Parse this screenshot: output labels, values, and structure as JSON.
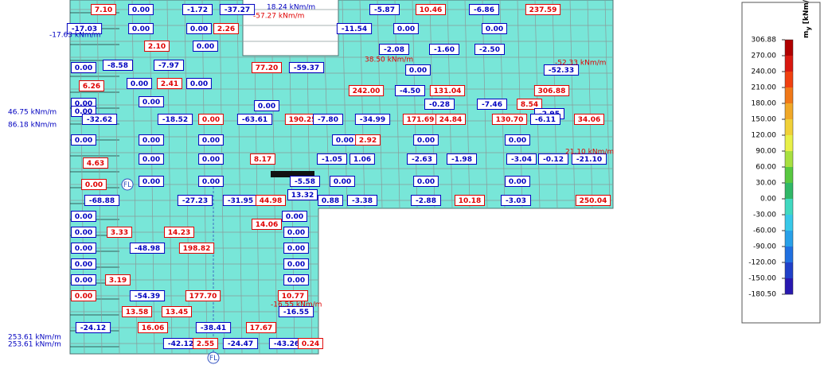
{
  "legend": {
    "symbol": "m",
    "subscript": "y",
    "unit": "[kNm/m]",
    "ticks": [
      "306.88",
      "270.00",
      "240.00",
      "210.00",
      "180.00",
      "150.00",
      "120.00",
      "90.00",
      "60.00",
      "30.00",
      "0.00",
      "-30.00",
      "-60.00",
      "-90.00",
      "-120.00",
      "-150.00",
      "-180.50"
    ],
    "colors": [
      "#b00000",
      "#d81810",
      "#f04010",
      "#f07818",
      "#f0a828",
      "#f0d038",
      "#e8f048",
      "#a8e040",
      "#58c840",
      "#30b868",
      "#40d8c0",
      "#38c8e8",
      "#28a0e8",
      "#2070e0",
      "#2040c8",
      "#2818b0"
    ]
  },
  "boxes": [
    {
      "text": "7.10",
      "tone": "#e00000"
    },
    {
      "text": "0.00",
      "tone": "#0000c0"
    },
    {
      "text": "-1.72",
      "tone": "#0000c0"
    },
    {
      "text": "-37.27",
      "tone": "#0000c0"
    },
    {
      "text": "-5.87",
      "tone": "#0000c0"
    },
    {
      "text": "10.46",
      "tone": "#e00000"
    },
    {
      "text": "-6.86",
      "tone": "#0000c0"
    },
    {
      "text": "237.59",
      "tone": "#e00000"
    },
    {
      "text": "-17.03",
      "tone": "#0000c0"
    },
    {
      "text": "0.00",
      "tone": "#0000c0"
    },
    {
      "text": "0.00",
      "tone": "#0000c0"
    },
    {
      "text": "2.26",
      "tone": "#e00000"
    },
    {
      "text": "-11.54",
      "tone": "#0000c0"
    },
    {
      "text": "0.00",
      "tone": "#0000c0"
    },
    {
      "text": "0.00",
      "tone": "#0000c0"
    },
    {
      "text": "2.10",
      "tone": "#e00000"
    },
    {
      "text": "0.00",
      "tone": "#0000c0"
    },
    {
      "text": "-2.08",
      "tone": "#0000c0"
    },
    {
      "text": "-1.60",
      "tone": "#0000c0"
    },
    {
      "text": "-2.50",
      "tone": "#0000c0"
    },
    {
      "text": "0.00",
      "tone": "#0000c0"
    },
    {
      "text": "-8.58",
      "tone": "#0000c0"
    },
    {
      "text": "-7.97",
      "tone": "#0000c0"
    },
    {
      "text": "77.20",
      "tone": "#e00000"
    },
    {
      "text": "-59.37",
      "tone": "#0000c0"
    },
    {
      "text": "0.00",
      "tone": "#0000c0"
    },
    {
      "text": "-52.33",
      "tone": "#0000c0"
    },
    {
      "text": "0.00",
      "tone": "#0000c0"
    },
    {
      "text": "2.41",
      "tone": "#e00000"
    },
    {
      "text": "0.00",
      "tone": "#0000c0"
    },
    {
      "text": "6.26",
      "tone": "#e00000"
    },
    {
      "text": "242.00",
      "tone": "#e00000"
    },
    {
      "text": "-4.50",
      "tone": "#0000c0"
    },
    {
      "text": "131.04",
      "tone": "#e00000"
    },
    {
      "text": "306.88",
      "tone": "#e00000"
    },
    {
      "text": "0.00",
      "tone": "#0000c0"
    },
    {
      "text": "0.00",
      "tone": "#0000c0"
    },
    {
      "text": "0.00",
      "tone": "#0000c0"
    },
    {
      "text": "-0.28",
      "tone": "#0000c0"
    },
    {
      "text": "-7.46",
      "tone": "#0000c0"
    },
    {
      "text": "8.54",
      "tone": "#e00000"
    },
    {
      "text": "0.00",
      "tone": "#0000c0"
    },
    {
      "text": "-2.95",
      "tone": "#0000c0"
    },
    {
      "text": "-32.62",
      "tone": "#0000c0"
    },
    {
      "text": "-18.52",
      "tone": "#0000c0"
    },
    {
      "text": "0.00",
      "tone": "#e00000"
    },
    {
      "text": "-63.61",
      "tone": "#0000c0"
    },
    {
      "text": "190.25",
      "tone": "#e00000"
    },
    {
      "text": "-7.80",
      "tone": "#0000c0"
    },
    {
      "text": "-34.99",
      "tone": "#0000c0"
    },
    {
      "text": "171.69",
      "tone": "#e00000"
    },
    {
      "text": "24.84",
      "tone": "#e00000"
    },
    {
      "text": "130.70",
      "tone": "#e00000"
    },
    {
      "text": "-6.11",
      "tone": "#0000c0"
    },
    {
      "text": "34.06",
      "tone": "#e00000"
    },
    {
      "text": "0.00",
      "tone": "#0000c0"
    },
    {
      "text": "0.00",
      "tone": "#0000c0"
    },
    {
      "text": "0.00",
      "tone": "#0000c0"
    },
    {
      "text": "0.00",
      "tone": "#0000c0"
    },
    {
      "text": "2.92",
      "tone": "#e00000"
    },
    {
      "text": "0.00",
      "tone": "#0000c0"
    },
    {
      "text": "0.00",
      "tone": "#0000c0"
    },
    {
      "text": "4.63",
      "tone": "#e00000"
    },
    {
      "text": "0.00",
      "tone": "#0000c0"
    },
    {
      "text": "0.00",
      "tone": "#0000c0"
    },
    {
      "text": "8.17",
      "tone": "#e00000"
    },
    {
      "text": "-1.05",
      "tone": "#0000c0"
    },
    {
      "text": "1.06",
      "tone": "#0000c0"
    },
    {
      "text": "-2.63",
      "tone": "#0000c0"
    },
    {
      "text": "-1.98",
      "tone": "#0000c0"
    },
    {
      "text": "-3.04",
      "tone": "#0000c0"
    },
    {
      "text": "-0.12",
      "tone": "#0000c0"
    },
    {
      "text": "-21.10",
      "tone": "#0000c0"
    },
    {
      "text": "0.00",
      "tone": "#e00000"
    },
    {
      "text": "0.00",
      "tone": "#0000c0"
    },
    {
      "text": "0.00",
      "tone": "#0000c0"
    },
    {
      "text": "-5.58",
      "tone": "#0000c0"
    },
    {
      "text": "0.00",
      "tone": "#0000c0"
    },
    {
      "text": "0.00",
      "tone": "#0000c0"
    },
    {
      "text": "0.00",
      "tone": "#0000c0"
    },
    {
      "text": "13.32",
      "tone": "#0000c0"
    },
    {
      "text": "-68.88",
      "tone": "#0000c0"
    },
    {
      "text": "-27.23",
      "tone": "#0000c0"
    },
    {
      "text": "-31.95",
      "tone": "#0000c0"
    },
    {
      "text": "44.98",
      "tone": "#e00000"
    },
    {
      "text": "0.88",
      "tone": "#0000c0"
    },
    {
      "text": "-3.38",
      "tone": "#0000c0"
    },
    {
      "text": "-2.88",
      "tone": "#0000c0"
    },
    {
      "text": "10.18",
      "tone": "#e00000"
    },
    {
      "text": "-3.03",
      "tone": "#0000c0"
    },
    {
      "text": "250.04",
      "tone": "#e00000"
    },
    {
      "text": "0.00",
      "tone": "#0000c0"
    },
    {
      "text": "14.06",
      "tone": "#e00000"
    },
    {
      "text": "0.00",
      "tone": "#0000c0"
    },
    {
      "text": "0.00",
      "tone": "#0000c0"
    },
    {
      "text": "3.33",
      "tone": "#e00000"
    },
    {
      "text": "14.23",
      "tone": "#e00000"
    },
    {
      "text": "0.00",
      "tone": "#0000c0"
    },
    {
      "text": "0.00",
      "tone": "#0000c0"
    },
    {
      "text": "-48.98",
      "tone": "#0000c0"
    },
    {
      "text": "198.82",
      "tone": "#e00000"
    },
    {
      "text": "0.00",
      "tone": "#0000c0"
    },
    {
      "text": "0.00",
      "tone": "#0000c0"
    },
    {
      "text": "0.00",
      "tone": "#0000c0"
    },
    {
      "text": "0.00",
      "tone": "#0000c0"
    },
    {
      "text": "3.19",
      "tone": "#e00000"
    },
    {
      "text": "0.00",
      "tone": "#0000c0"
    },
    {
      "text": "0.00",
      "tone": "#e00000"
    },
    {
      "text": "-54.39",
      "tone": "#0000c0"
    },
    {
      "text": "177.70",
      "tone": "#e00000"
    },
    {
      "text": "10.77",
      "tone": "#e00000"
    },
    {
      "text": "13.58",
      "tone": "#e00000"
    },
    {
      "text": "13.45",
      "tone": "#e00000"
    },
    {
      "text": "-16.55",
      "tone": "#0000c0"
    },
    {
      "text": "-24.12",
      "tone": "#0000c0"
    },
    {
      "text": "16.06",
      "tone": "#e00000"
    },
    {
      "text": "-38.41",
      "tone": "#0000c0"
    },
    {
      "text": "17.67",
      "tone": "#e00000"
    },
    {
      "text": "-42.12",
      "tone": "#0000c0"
    },
    {
      "text": "2.55",
      "tone": "#e00000"
    },
    {
      "text": "-24.47",
      "tone": "#0000c0"
    },
    {
      "text": "-43.26",
      "tone": "#0000c0"
    },
    {
      "text": "0.24",
      "tone": "#e00000"
    }
  ],
  "annotations": [
    {
      "text": "18.24 kNm/m",
      "tone": "#0000c0"
    },
    {
      "text": "-57.27 kNm/m",
      "tone": "#e00000"
    },
    {
      "text": "-17.63 kNm/m",
      "tone": "#0000c0"
    },
    {
      "text": "46.75 kNm/m",
      "tone": "#0000c0"
    },
    {
      "text": "86.18 kNm/m",
      "tone": "#0000c0"
    },
    {
      "text": "38.50 kNm/m",
      "tone": "#e00000"
    },
    {
      "text": "-52.33 kNm/m",
      "tone": "#e00000"
    },
    {
      "text": "21.10 kNm/m",
      "tone": "#e00000"
    },
    {
      "text": "-16.55 kNm/m",
      "tone": "#e00000"
    },
    {
      "text": "253.61 kNm/m",
      "tone": "#0000c0"
    },
    {
      "text": "253.61 kNm/m",
      "tone": "#0000c0"
    }
  ],
  "markers": [
    "FL",
    "FL"
  ]
}
